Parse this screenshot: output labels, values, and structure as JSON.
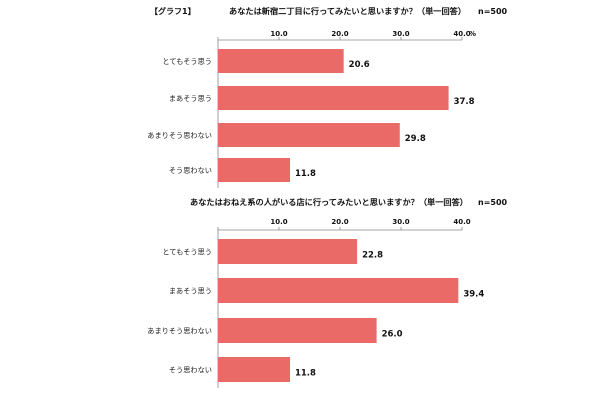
{
  "figure_label": "【グラフ1】",
  "colors": {
    "bar": "#e96a66",
    "axis": "#888888",
    "text": "#111111"
  },
  "chart_data": [
    {
      "type": "bar",
      "orientation": "horizontal",
      "title": "あなたは新宿二丁目に行ってみたいと思いますか？（単一回答）",
      "sample_size": "n=500",
      "categories": [
        "とてもそう思う",
        "まあそう思う",
        "あまりそう思わない",
        "そう思わない"
      ],
      "values": [
        20.6,
        37.8,
        29.8,
        11.8
      ],
      "value_labels": [
        "20.6",
        "37.8",
        "29.8",
        "11.8"
      ],
      "xlim": [
        0,
        40
      ],
      "ticks": [
        "10.0",
        "20.0",
        "30.0",
        "40.0"
      ],
      "unit": "%",
      "grid": false,
      "legend": "none"
    },
    {
      "type": "bar",
      "orientation": "horizontal",
      "title": "あなたはおねえ系の人がいる店に行ってみたいと思いますか？（単一回答）",
      "sample_size": "n=500",
      "categories": [
        "とてもそう思う",
        "まあそう思う",
        "あまりそう思わない",
        "そう思わない"
      ],
      "values": [
        22.8,
        39.4,
        26.0,
        11.8
      ],
      "value_labels": [
        "22.8",
        "39.4",
        "26.0",
        "11.8"
      ],
      "xlim": [
        0,
        40
      ],
      "ticks": [
        "10.0",
        "20.0",
        "30.0",
        "40.0"
      ],
      "unit": "",
      "grid": false,
      "legend": "none"
    }
  ]
}
